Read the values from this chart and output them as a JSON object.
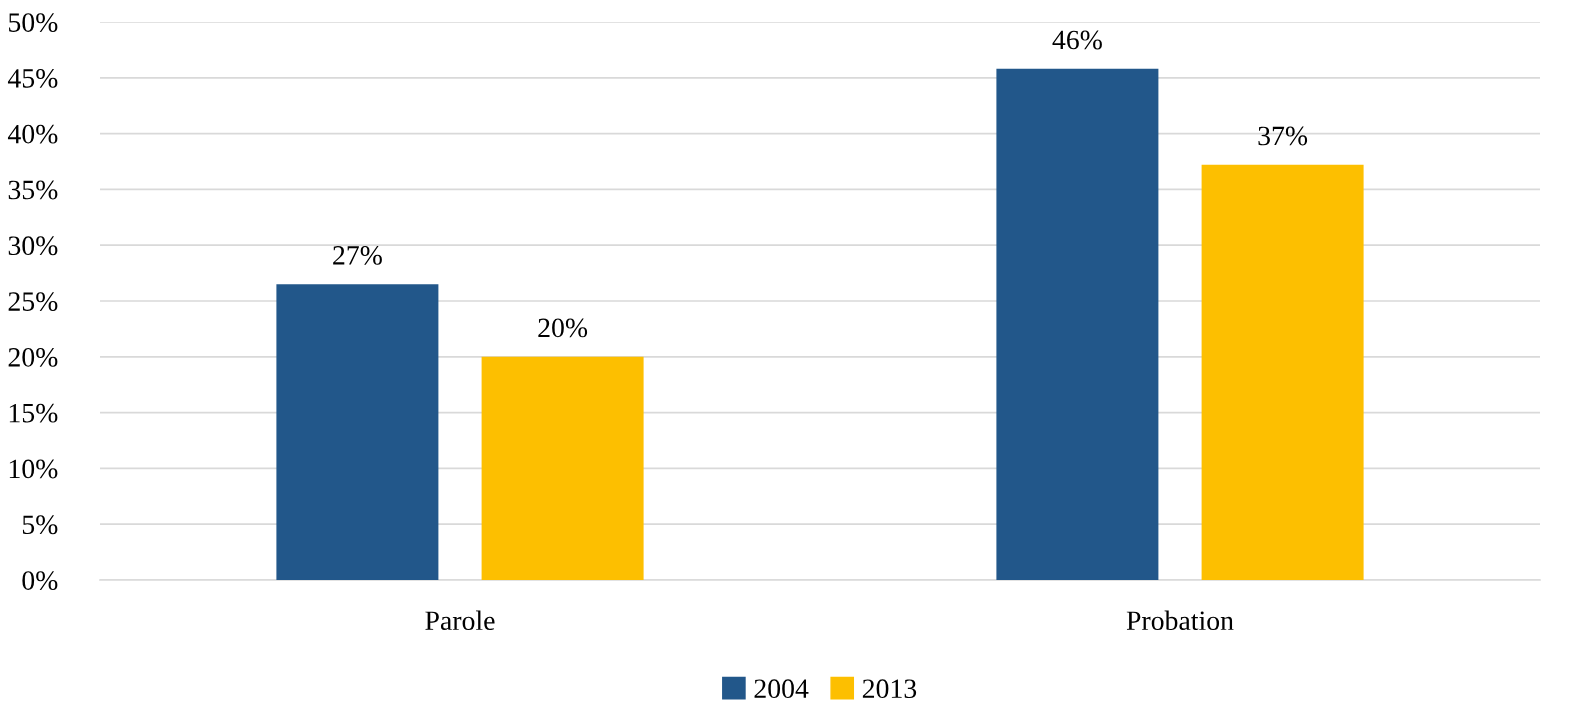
{
  "chart_data": {
    "type": "bar",
    "categories": [
      "Parole",
      "Probation"
    ],
    "series": [
      {
        "name": "2004",
        "color": "#22578a",
        "values": [
          26.5,
          45.8
        ],
        "value_labels": [
          "27%",
          "46%"
        ]
      },
      {
        "name": "2013",
        "color": "#fdbf00",
        "values": [
          20.0,
          37.2
        ],
        "value_labels": [
          "20%",
          "37%"
        ]
      }
    ],
    "ylim": [
      0,
      50
    ],
    "yticks": [
      {
        "value": 0,
        "label": "0%"
      },
      {
        "value": 5,
        "label": "5%"
      },
      {
        "value": 10,
        "label": "10%"
      },
      {
        "value": 15,
        "label": "15%"
      },
      {
        "value": 20,
        "label": "20%"
      },
      {
        "value": 25,
        "label": "25%"
      },
      {
        "value": 30,
        "label": "30%"
      },
      {
        "value": 35,
        "label": "35%"
      },
      {
        "value": 40,
        "label": "40%"
      },
      {
        "value": 45,
        "label": "45%"
      },
      {
        "value": 50,
        "label": "50%"
      }
    ],
    "grid": "y",
    "legend": "bottom"
  }
}
